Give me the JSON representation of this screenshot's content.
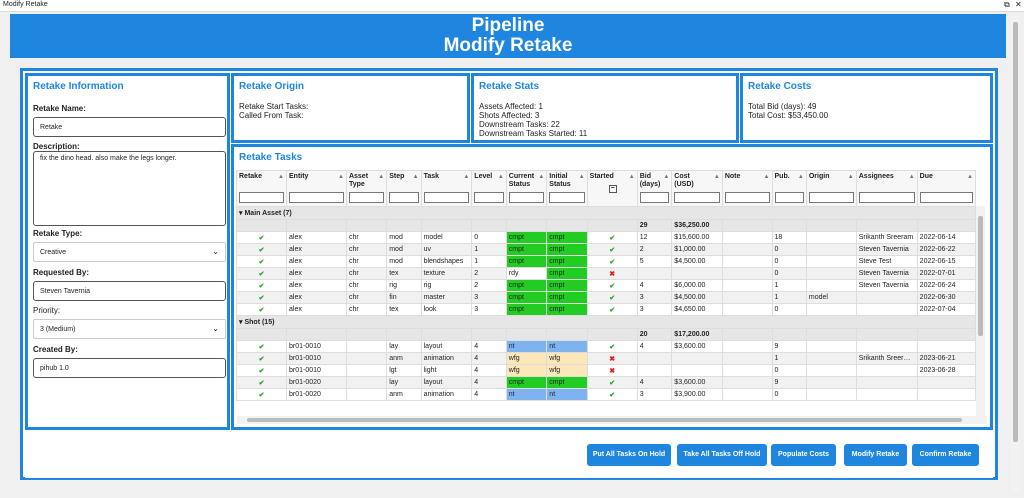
{
  "window": {
    "title": "Modify Retake"
  },
  "header": {
    "line1": "Pipeline",
    "line2": "Modify Retake"
  },
  "info": {
    "title": "Retake Information",
    "name_label": "Retake Name:",
    "name_value": "Retake",
    "desc_label": "Description:",
    "desc_value": "fix the dino head. also make the legs longer.",
    "type_label": "Retake Type:",
    "type_value": "Creative",
    "requested_label": "Requested By:",
    "requested_value": "Steven Tavernia",
    "priority_label": "Priority:",
    "priority_value": "3 (Medium)",
    "created_label": "Created By:",
    "created_value": "pihub 1.0"
  },
  "origin": {
    "title": "Retake Origin",
    "text": "Retake Start Tasks:\nCalled From Task:"
  },
  "stats": {
    "title": "Retake Stats",
    "text": "Assets Affected: 1\nShots Affected: 3\nDownstream Tasks: 22\nDownstream Tasks Started: 11"
  },
  "costs": {
    "title": "Retake Costs",
    "text": "Total Bid (days): 49\nTotal Cost: $53,450.00"
  },
  "tasks": {
    "title": "Retake Tasks",
    "columns": [
      "Retake",
      "Entity",
      "Asset Type",
      "Step",
      "Task",
      "Level",
      "Current Status",
      "Initial Status",
      "Started",
      "Bid (days)",
      "Cost (USD)",
      "Note",
      "Pub.",
      "Origin",
      "Assignees",
      "Due"
    ],
    "groups": [
      {
        "label": "Main Asset (7)",
        "bid_total": "29",
        "cost_total": "$36,250.00",
        "rows": [
          [
            "ck",
            "alex",
            "chr",
            "mod",
            "model",
            "0",
            "cmpt",
            "cmpt",
            "ck",
            "12",
            "$15,600.00",
            "",
            "18",
            "",
            "Srikanth Sreeram",
            "2022-06-14"
          ],
          [
            "ck",
            "alex",
            "chr",
            "mod",
            "uv",
            "1",
            "cmpt",
            "cmpt",
            "ck",
            "2",
            "$1,000.00",
            "",
            "0",
            "",
            "Steven Tavernia",
            "2022-06-22"
          ],
          [
            "ck",
            "alex",
            "chr",
            "mod",
            "blendshapes",
            "1",
            "cmpt",
            "cmpt",
            "ck",
            "5",
            "$4,500.00",
            "",
            "0",
            "",
            "Steve Test",
            "2022-06-15"
          ],
          [
            "ck",
            "alex",
            "chr",
            "tex",
            "texture",
            "2",
            "rdy",
            "cmpt",
            "xx",
            "",
            "",
            "",
            "0",
            "",
            "Steven Tavernia",
            "2022-07-01"
          ],
          [
            "ck",
            "alex",
            "chr",
            "rig",
            "rig",
            "2",
            "cmpt",
            "cmpt",
            "ck",
            "4",
            "$6,000.00",
            "",
            "1",
            "",
            "Steven Tavernia",
            "2022-06-24"
          ],
          [
            "ck",
            "alex",
            "chr",
            "fin",
            "master",
            "3",
            "cmpt",
            "cmpt",
            "ck",
            "3",
            "$4,500.00",
            "",
            "1",
            "model",
            "",
            "2022-06-30"
          ],
          [
            "ck",
            "alex",
            "chr",
            "tex",
            "look",
            "3",
            "cmpt",
            "cmpt",
            "ck",
            "3",
            "$4,650.00",
            "",
            "0",
            "",
            "",
            "2022-07-04"
          ]
        ]
      },
      {
        "label": "Shot (15)",
        "bid_total": "20",
        "cost_total": "$17,200.00",
        "rows": [
          [
            "ck",
            "br01-0010",
            "",
            "lay",
            "layout",
            "4",
            "nt",
            "nt",
            "ck",
            "4",
            "$3,600.00",
            "",
            "9",
            "",
            "",
            ""
          ],
          [
            "ck",
            "br01-0010",
            "",
            "anm",
            "animation",
            "4",
            "wfg",
            "wfg",
            "xx",
            "",
            "",
            "",
            "1",
            "",
            "Srikanth Sreer…",
            "2023-06-21"
          ],
          [
            "ck",
            "br01-0010",
            "",
            "lgt",
            "light",
            "4",
            "wfg",
            "wfg",
            "xx",
            "",
            "",
            "",
            "0",
            "",
            "",
            "2023-06-28"
          ],
          [
            "ck",
            "br01-0020",
            "",
            "lay",
            "layout",
            "4",
            "cmpt",
            "cmpt",
            "ck",
            "4",
            "$3,600.00",
            "",
            "9",
            "",
            "",
            ""
          ],
          [
            "ck",
            "br01-0020",
            "",
            "anm",
            "animation",
            "4",
            "nt",
            "nt",
            "ck",
            "3",
            "$3,900.00",
            "",
            "0",
            "",
            "",
            ""
          ]
        ]
      }
    ]
  },
  "buttons": {
    "hold": "Put All Tasks On Hold",
    "offhold": "Take All Tasks Off Hold",
    "populate": "Populate Costs",
    "modify": "Modify Retake",
    "confirm": "Confirm Retake"
  }
}
